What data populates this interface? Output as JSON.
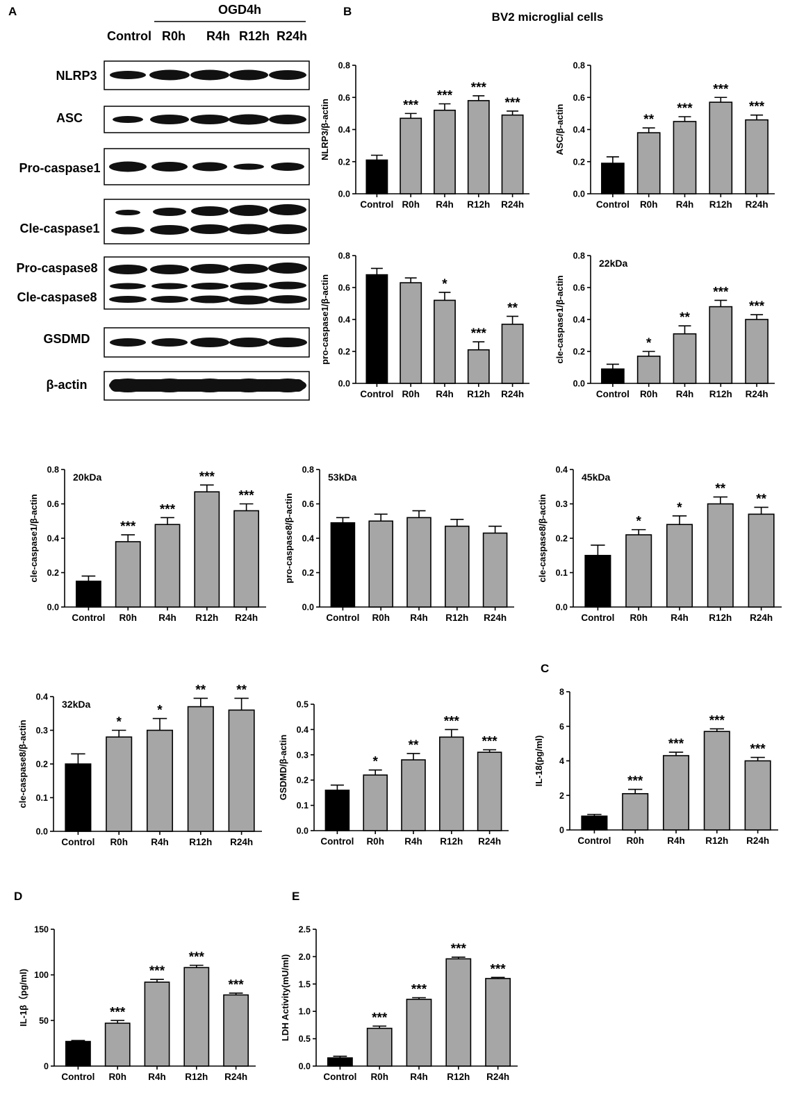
{
  "panel_labels": {
    "A": "A",
    "B": "B",
    "C": "C",
    "D": "D",
    "E": "E"
  },
  "figure_title": "BV2 microglial cells",
  "blot": {
    "group_label": "OGD4h",
    "lanes": [
      "Control",
      "R0h",
      "R4h",
      "R12h",
      "R24h"
    ],
    "rows": [
      {
        "label": "NLRP3"
      },
      {
        "label": "ASC"
      },
      {
        "label": "Pro-caspase1"
      },
      {
        "label": "Cle-caspase1"
      },
      {
        "label": "Pro-caspase8"
      },
      {
        "label": "Cle-caspase8"
      },
      {
        "label": "GSDMD"
      },
      {
        "label": "β-actin"
      }
    ]
  },
  "colors": {
    "control_bar": "#000000",
    "treatment_bar": "#a6a6a6",
    "axis": "#000000"
  },
  "chart_data": [
    {
      "type": "bar",
      "categories": [
        "Control",
        "R0h",
        "R4h",
        "R12h",
        "R24h"
      ],
      "values": [
        0.21,
        0.47,
        0.52,
        0.58,
        0.49
      ],
      "errors": [
        0.03,
        0.03,
        0.04,
        0.03,
        0.025
      ],
      "significance": [
        "",
        "***",
        "***",
        "***",
        "***"
      ],
      "ylabel": "NLRP3/β-actin",
      "inset": "",
      "ylim": [
        0,
        0.8
      ],
      "yticks": [
        "0.0",
        "0.2",
        "0.4",
        "0.6",
        "0.8"
      ]
    },
    {
      "type": "bar",
      "categories": [
        "Control",
        "R0h",
        "R4h",
        "R12h",
        "R24h"
      ],
      "values": [
        0.19,
        0.38,
        0.45,
        0.57,
        0.46
      ],
      "errors": [
        0.04,
        0.03,
        0.03,
        0.03,
        0.03
      ],
      "significance": [
        "",
        "**",
        "***",
        "***",
        "***"
      ],
      "ylabel": "ASC/β-actin",
      "inset": "",
      "ylim": [
        0,
        0.8
      ],
      "yticks": [
        "0.0",
        "0.2",
        "0.4",
        "0.6",
        "0.8"
      ]
    },
    {
      "type": "bar",
      "categories": [
        "Control",
        "R0h",
        "R4h",
        "R12h",
        "R24h"
      ],
      "values": [
        0.68,
        0.63,
        0.52,
        0.21,
        0.37
      ],
      "errors": [
        0.04,
        0.03,
        0.05,
        0.05,
        0.05
      ],
      "significance": [
        "",
        "",
        "*",
        "***",
        "**"
      ],
      "ylabel": "pro-caspase1/β-actin",
      "inset": "",
      "ylim": [
        0,
        0.8
      ],
      "yticks": [
        "0.0",
        "0.2",
        "0.4",
        "0.6",
        "0.8"
      ]
    },
    {
      "type": "bar",
      "categories": [
        "Control",
        "R0h",
        "R4h",
        "R12h",
        "R24h"
      ],
      "values": [
        0.09,
        0.17,
        0.31,
        0.48,
        0.4
      ],
      "errors": [
        0.03,
        0.03,
        0.05,
        0.04,
        0.03
      ],
      "significance": [
        "",
        "*",
        "**",
        "***",
        "***"
      ],
      "ylabel": "cle-caspase1/β-actin",
      "inset": "22kDa",
      "ylim": [
        0,
        0.8
      ],
      "yticks": [
        "0.0",
        "0.2",
        "0.4",
        "0.6",
        "0.8"
      ]
    },
    {
      "type": "bar",
      "categories": [
        "Control",
        "R0h",
        "R4h",
        "R12h",
        "R24h"
      ],
      "values": [
        0.15,
        0.38,
        0.48,
        0.67,
        0.56
      ],
      "errors": [
        0.03,
        0.04,
        0.04,
        0.04,
        0.04
      ],
      "significance": [
        "",
        "***",
        "***",
        "***",
        "***"
      ],
      "ylabel": "cle-caspase1/β-actin",
      "inset": "20kDa",
      "ylim": [
        0,
        0.8
      ],
      "yticks": [
        "0.0",
        "0.2",
        "0.4",
        "0.6",
        "0.8"
      ]
    },
    {
      "type": "bar",
      "categories": [
        "Control",
        "R0h",
        "R4h",
        "R12h",
        "R24h"
      ],
      "values": [
        0.49,
        0.5,
        0.52,
        0.47,
        0.43
      ],
      "errors": [
        0.03,
        0.04,
        0.04,
        0.04,
        0.04
      ],
      "significance": [
        "",
        "",
        "",
        "",
        ""
      ],
      "ylabel": "pro-caspase8/β-actin",
      "inset": "53kDa",
      "ylim": [
        0,
        0.8
      ],
      "yticks": [
        "0.0",
        "0.2",
        "0.4",
        "0.6",
        "0.8"
      ]
    },
    {
      "type": "bar",
      "categories": [
        "Control",
        "R0h",
        "R4h",
        "R12h",
        "R24h"
      ],
      "values": [
        0.15,
        0.21,
        0.24,
        0.3,
        0.27
      ],
      "errors": [
        0.03,
        0.015,
        0.025,
        0.02,
        0.02
      ],
      "significance": [
        "",
        "*",
        "*",
        "**",
        "**"
      ],
      "ylabel": "cle-caspase8/β-actin",
      "inset": "45kDa",
      "ylim": [
        0,
        0.4
      ],
      "yticks": [
        "0.0",
        "0.1",
        "0.2",
        "0.3",
        "0.4"
      ]
    },
    {
      "type": "bar",
      "categories": [
        "Control",
        "R0h",
        "R4h",
        "R12h",
        "R24h"
      ],
      "values": [
        0.2,
        0.28,
        0.3,
        0.37,
        0.36
      ],
      "errors": [
        0.03,
        0.02,
        0.035,
        0.025,
        0.035
      ],
      "significance": [
        "",
        "*",
        "*",
        "**",
        "**"
      ],
      "ylabel": "cle-caspase8/β-actin",
      "inset": "32kDa",
      "ylim": [
        0,
        0.4
      ],
      "yticks": [
        "0.0",
        "0.1",
        "0.2",
        "0.3",
        "0.4"
      ]
    },
    {
      "type": "bar",
      "categories": [
        "Control",
        "R0h",
        "R4h",
        "R12h",
        "R24h"
      ],
      "values": [
        0.16,
        0.22,
        0.28,
        0.37,
        0.31
      ],
      "errors": [
        0.02,
        0.02,
        0.025,
        0.03,
        0.01
      ],
      "significance": [
        "",
        "*",
        "**",
        "***",
        "***"
      ],
      "ylabel": "GSDMD/β-actin",
      "inset": "",
      "ylim": [
        0,
        0.5
      ],
      "yticks": [
        "0.0",
        "0.1",
        "0.2",
        "0.3",
        "0.4",
        "0.5"
      ]
    },
    {
      "type": "bar",
      "categories": [
        "Control",
        "R0h",
        "R4h",
        "R12h",
        "R24h"
      ],
      "values": [
        0.8,
        2.1,
        4.3,
        5.7,
        4.0
      ],
      "errors": [
        0.1,
        0.25,
        0.2,
        0.15,
        0.2
      ],
      "significance": [
        "",
        "***",
        "***",
        "***",
        "***"
      ],
      "ylabel": "IL-18(pg/ml)",
      "inset": "",
      "ylim": [
        0,
        8
      ],
      "yticks": [
        "0",
        "2",
        "4",
        "6",
        "8"
      ]
    },
    {
      "type": "bar",
      "categories": [
        "Control",
        "R0h",
        "R4h",
        "R12h",
        "R24h"
      ],
      "values": [
        27,
        47,
        92,
        108,
        78
      ],
      "errors": [
        1,
        3,
        3,
        2.5,
        2
      ],
      "significance": [
        "",
        "***",
        "***",
        "***",
        "***"
      ],
      "ylabel": "IL-1β（pg/ml)",
      "inset": "",
      "ylim": [
        0,
        150
      ],
      "yticks": [
        "0",
        "50",
        "100",
        "150"
      ]
    },
    {
      "type": "bar",
      "categories": [
        "Control",
        "R0h",
        "R4h",
        "R12h",
        "R24h"
      ],
      "values": [
        0.15,
        0.69,
        1.22,
        1.96,
        1.6
      ],
      "errors": [
        0.03,
        0.04,
        0.03,
        0.03,
        0.02
      ],
      "significance": [
        "",
        "***",
        "***",
        "***",
        "***"
      ],
      "ylabel": "LDH Activity(mU/ml)",
      "inset": "",
      "ylim": [
        0,
        2.5
      ],
      "yticks": [
        "0.0",
        "0.5",
        "1.0",
        "1.5",
        "2.0",
        "2.5"
      ]
    }
  ]
}
